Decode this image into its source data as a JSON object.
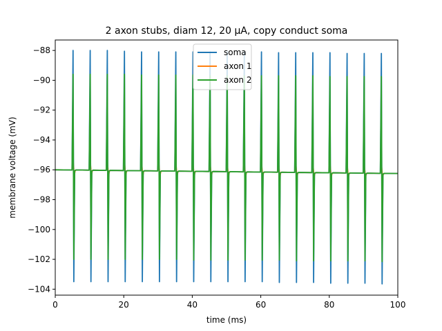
{
  "chart_data": {
    "type": "line",
    "title": "2 axon stubs, diam 12, 20 µA, copy conduct soma",
    "xlabel": "time (ms)",
    "ylabel": "membrane voltage (mV)",
    "xlim": [
      0,
      100
    ],
    "ylim": [
      -104.4,
      -87.3
    ],
    "xticks": [
      0,
      20,
      40,
      60,
      80,
      100
    ],
    "yticks": [
      -104,
      -102,
      -100,
      -98,
      -96,
      -94,
      -92,
      -90,
      -88
    ],
    "grid": false,
    "legend_position": "top-center",
    "baseline": {
      "start": -96.0,
      "end": -96.25
    },
    "spike_times": [
      5.2,
      10.2,
      15.2,
      20.2,
      25.2,
      30.2,
      35.2,
      40.2,
      45.2,
      50.2,
      55.2,
      60.2,
      65.2,
      70.2,
      75.2,
      80.2,
      85.2,
      90.2,
      95.2
    ],
    "series": [
      {
        "name": "soma",
        "color": "#1f77b4",
        "spike_width": 0.22,
        "peaks": [
          -88.0,
          -88.0,
          -88.0,
          -88.05,
          -88.1,
          -88.1,
          -88.1,
          -88.1,
          -88.1,
          -88.1,
          -88.1,
          -88.1,
          -88.15,
          -88.15,
          -88.15,
          -88.15,
          -88.2,
          -88.2,
          -88.2
        ],
        "troughs": [
          -103.5,
          -103.5,
          -103.5,
          -103.5,
          -103.5,
          -103.5,
          -103.5,
          -103.5,
          -103.5,
          -103.5,
          -103.5,
          -103.5,
          -103.55,
          -103.55,
          -103.55,
          -103.6,
          -103.6,
          -103.6,
          -103.65
        ]
      },
      {
        "name": "axon 1",
        "color": "#ff7f0e",
        "spike_width": 0.35,
        "peaks": [
          -95.3,
          -95.4,
          -95.4,
          -95.4,
          -95.4,
          -95.4,
          -95.5,
          -95.5,
          -95.5,
          -95.5,
          -95.5,
          -95.5,
          -95.5,
          -95.5,
          -95.5,
          -95.5,
          -95.6,
          -95.6,
          -95.6
        ],
        "troughs": [
          -96.4,
          -96.4,
          -96.4,
          -96.45,
          -96.45,
          -96.45,
          -96.45,
          -96.45,
          -96.5,
          -96.5,
          -96.5,
          -96.5,
          -96.5,
          -96.5,
          -96.5,
          -96.5,
          -96.5,
          -96.5,
          -96.5
        ]
      },
      {
        "name": "axon 2",
        "color": "#2ca02c",
        "spike_width": 0.22,
        "peaks": [
          -89.6,
          -89.6,
          -89.6,
          -89.6,
          -89.65,
          -89.65,
          -89.65,
          -89.65,
          -89.7,
          -89.7,
          -89.7,
          -89.7,
          -89.7,
          -89.7,
          -89.7,
          -89.75,
          -89.75,
          -89.75,
          -89.75
        ],
        "troughs": [
          -102.0,
          -102.0,
          -102.0,
          -102.0,
          -102.0,
          -102.0,
          -102.0,
          -102.05,
          -102.05,
          -102.05,
          -102.05,
          -102.05,
          -102.05,
          -102.1,
          -102.1,
          -102.1,
          -102.1,
          -102.1,
          -102.15
        ]
      }
    ]
  }
}
